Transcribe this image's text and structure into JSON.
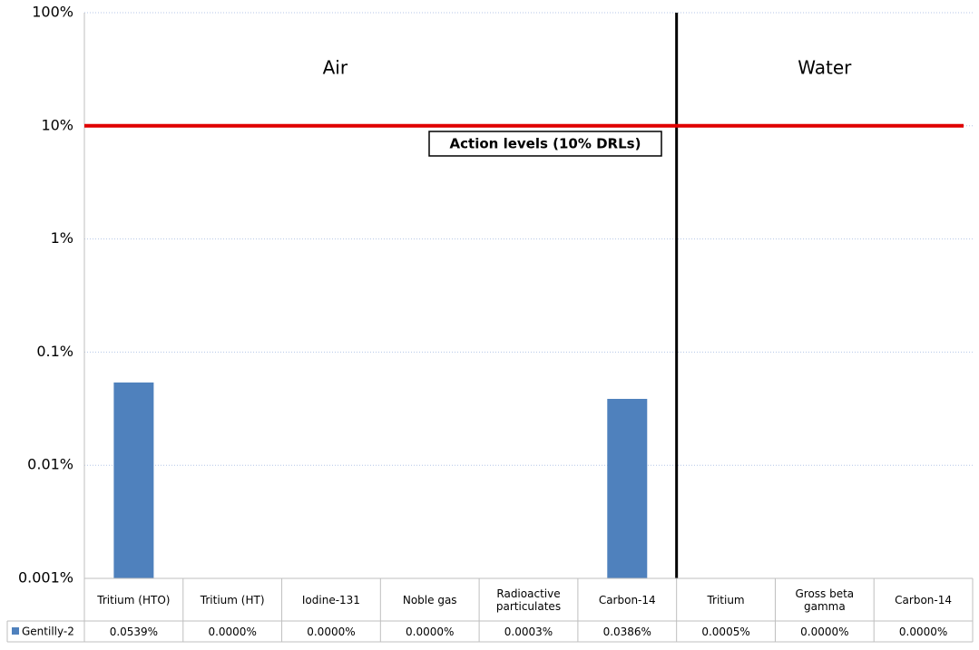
{
  "chart_data": {
    "type": "bar",
    "categories": [
      "Tritium (HTO)",
      "Tritium (HT)",
      "Iodine-131",
      "Noble gas",
      "Radioactive particulates",
      "Carbon-14",
      "Tritium",
      "Gross beta gamma",
      "Carbon-14"
    ],
    "series": [
      {
        "name": "Gentilly-2",
        "color": "#4f81bd",
        "values": [
          0.0539,
          0,
          0,
          0,
          0.0003,
          0.0386,
          0.0005,
          0,
          0
        ],
        "value_labels": [
          "0.0539%",
          "0.0000%",
          "0.0000%",
          "0.0000%",
          "0.0003%",
          "0.0386%",
          "0.0005%",
          "0.0000%",
          "0.0000%"
        ]
      }
    ],
    "groups": [
      {
        "label": "Air",
        "count": 6
      },
      {
        "label": "Water",
        "count": 3
      }
    ],
    "reference_line": {
      "value": 10,
      "label": "Action levels (10% DRLs)",
      "color": "#e00000"
    },
    "log_scale": true,
    "grid": true,
    "ylim": [
      0.001,
      100
    ],
    "yticks": [
      {
        "value": 0.001,
        "label": "0.001%"
      },
      {
        "value": 0.01,
        "label": "0.01%"
      },
      {
        "value": 0.1,
        "label": "0.1%"
      },
      {
        "value": 1,
        "label": "1%"
      },
      {
        "value": 10,
        "label": "10%"
      },
      {
        "value": 100,
        "label": "100%"
      }
    ]
  }
}
